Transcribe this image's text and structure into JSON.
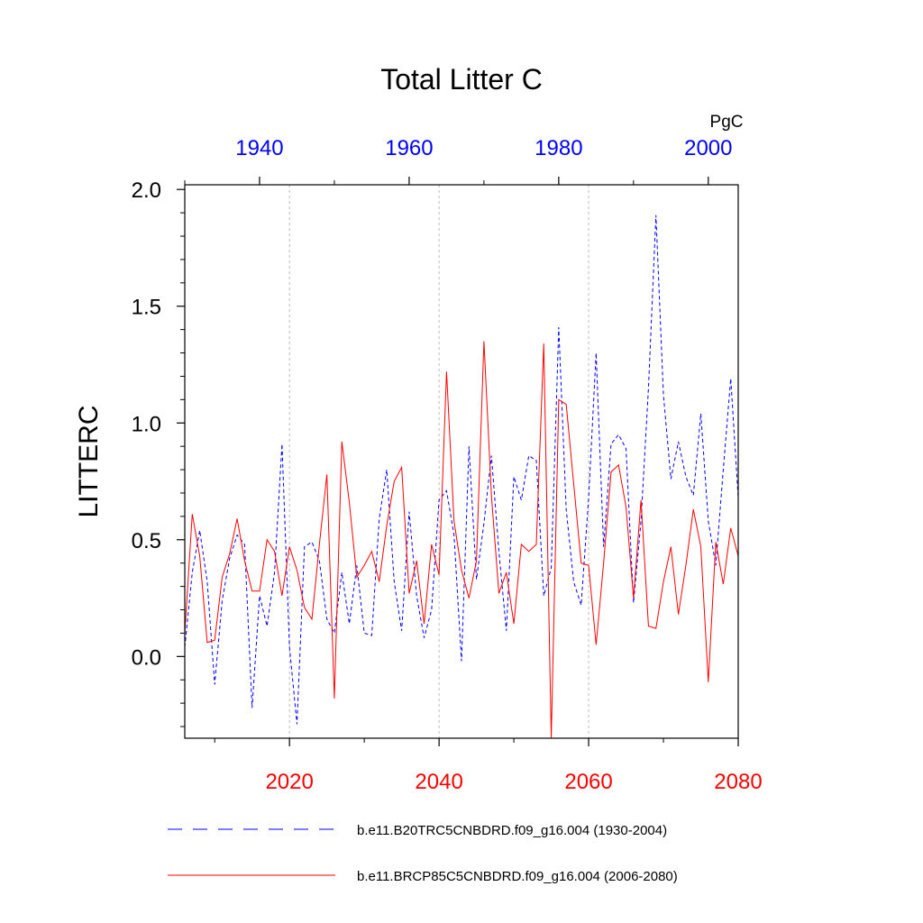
{
  "chart_data": {
    "type": "line",
    "title": "Total Litter C",
    "ylabel": "LITTERC",
    "units": "PgC",
    "ylim": [
      -0.35,
      2.02
    ],
    "y_ticks": [
      0.0,
      0.5,
      1.0,
      1.5,
      2.0
    ],
    "y_tick_labels": [
      "0.0",
      "0.5",
      "1.0",
      "1.5",
      "2.0"
    ],
    "bottom_axis": {
      "range": [
        2006,
        2080
      ],
      "ticks": [
        2020,
        2040,
        2060,
        2080
      ],
      "tick_labels": [
        "2020",
        "2040",
        "2060",
        "2080"
      ],
      "color": "#ff0000"
    },
    "top_axis": {
      "range": [
        1930,
        2004
      ],
      "ticks": [
        1940,
        1960,
        1980,
        2000
      ],
      "tick_labels": [
        "1940",
        "1960",
        "1980",
        "2000"
      ],
      "color": "#0000ff"
    },
    "grid_x": [
      2020,
      2040,
      2060
    ],
    "series": [
      {
        "name": "b.e11.B20TRC5CNBDRD.f09_g16.004 (1930-2004)",
        "color": "#0000ff",
        "style": "dashed",
        "axis": "top",
        "x_start": 1930,
        "values": [
          0.04,
          0.36,
          0.54,
          0.32,
          -0.12,
          0.24,
          0.42,
          0.52,
          0.48,
          -0.22,
          0.26,
          0.13,
          0.36,
          0.91,
          0.04,
          -0.29,
          0.47,
          0.49,
          0.41,
          0.16,
          0.1,
          0.36,
          0.14,
          0.39,
          0.1,
          0.09,
          0.59,
          0.8,
          0.32,
          0.11,
          0.62,
          0.26,
          0.08,
          0.2,
          0.67,
          0.71,
          0.52,
          -0.02,
          0.9,
          0.33,
          0.57,
          0.86,
          0.45,
          0.11,
          0.77,
          0.67,
          0.86,
          0.84,
          0.26,
          0.38,
          1.41,
          0.63,
          0.32,
          0.22,
          0.68,
          1.3,
          0.47,
          0.91,
          0.95,
          0.89,
          0.23,
          0.58,
          1.15,
          1.89,
          1.12,
          0.76,
          0.92,
          0.77,
          0.69,
          1.04,
          0.58,
          0.39,
          0.8,
          1.19,
          0.68
        ]
      },
      {
        "name": "b.e11.BRCP85C5CNBDRD.f09_g16.004 (2006-2080)",
        "color": "#ff0000",
        "style": "solid",
        "axis": "bottom",
        "x_start": 2006,
        "values": [
          0.1,
          0.61,
          0.43,
          0.06,
          0.07,
          0.34,
          0.44,
          0.59,
          0.41,
          0.28,
          0.28,
          0.5,
          0.45,
          0.26,
          0.47,
          0.37,
          0.21,
          0.16,
          0.48,
          0.78,
          -0.18,
          0.92,
          0.66,
          0.34,
          0.39,
          0.45,
          0.32,
          0.56,
          0.75,
          0.81,
          0.27,
          0.41,
          0.14,
          0.48,
          0.35,
          1.22,
          0.58,
          0.37,
          0.25,
          0.41,
          1.35,
          0.69,
          0.27,
          0.36,
          0.14,
          0.48,
          0.45,
          0.48,
          1.34,
          -0.35,
          1.1,
          1.08,
          0.74,
          0.4,
          0.39,
          0.05,
          0.4,
          0.79,
          0.82,
          0.64,
          0.25,
          0.67,
          0.13,
          0.12,
          0.32,
          0.47,
          0.18,
          0.39,
          0.63,
          0.47,
          -0.11,
          0.49,
          0.31,
          0.55,
          0.43
        ]
      }
    ]
  }
}
